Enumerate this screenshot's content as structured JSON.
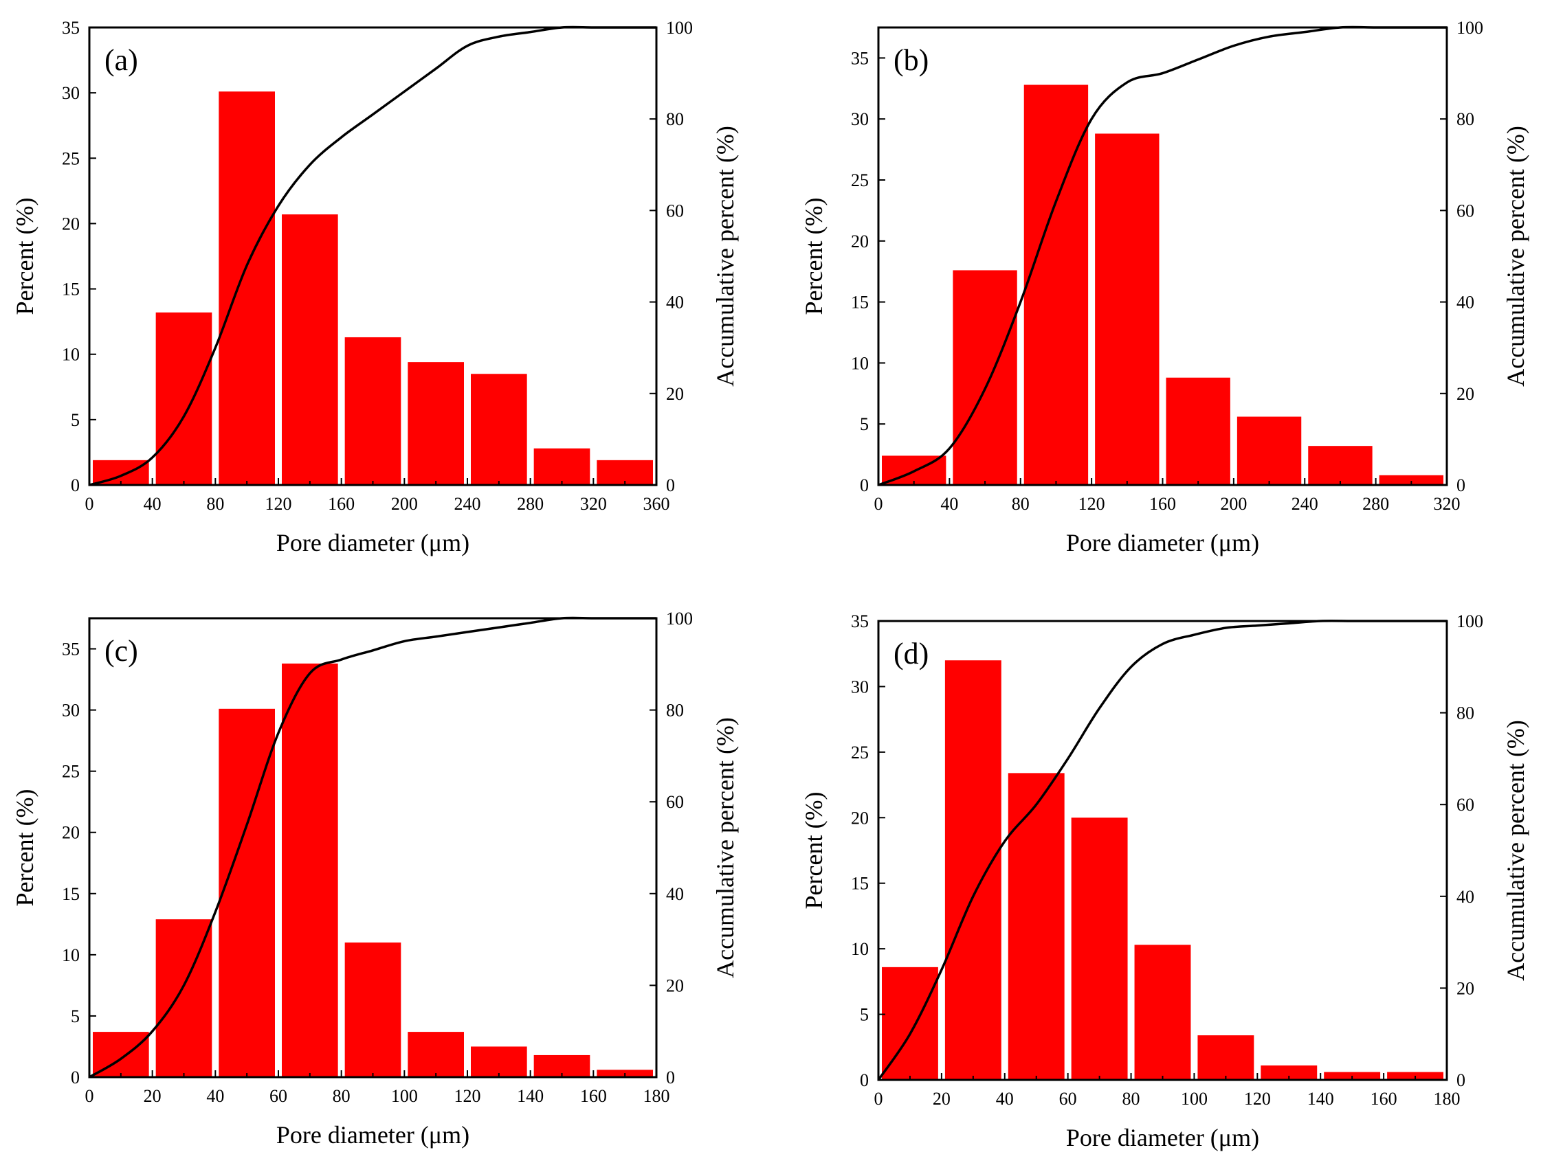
{
  "colors": {
    "bar": "#ff0000",
    "curve": "#000000",
    "axis": "#000000"
  },
  "chart_data": [
    {
      "type": "bar",
      "label": "(a)",
      "xlabel": "Pore diameter (μm)",
      "ylabel": "Percent (%)",
      "y2label": "Accumulative percent (%)",
      "xlim": [
        0,
        360
      ],
      "ylim": [
        0,
        35
      ],
      "y2lim": [
        0,
        100
      ],
      "xticks": [
        0,
        40,
        80,
        120,
        160,
        200,
        240,
        280,
        320,
        360
      ],
      "yticks": [
        0,
        5,
        10,
        15,
        20,
        25,
        30,
        35
      ],
      "y2ticks": [
        0,
        20,
        40,
        60,
        80,
        100
      ],
      "bin_width": 40,
      "bins": [
        0,
        40,
        80,
        120,
        160,
        200,
        240,
        280,
        320
      ],
      "values": [
        1.9,
        13.2,
        30.1,
        20.7,
        11.3,
        9.4,
        8.5,
        2.8,
        1.9
      ],
      "cumulative": {
        "x": [
          0,
          20,
          40,
          60,
          80,
          100,
          120,
          140,
          160,
          180,
          200,
          220,
          240,
          260,
          280,
          300,
          320,
          340,
          360
        ],
        "y": [
          0,
          2,
          6,
          15,
          30,
          48,
          61,
          70,
          76,
          81,
          86,
          91,
          96,
          98,
          99,
          100,
          100,
          100,
          100
        ]
      }
    },
    {
      "type": "bar",
      "label": "(b)",
      "xlabel": "Pore diameter (μm)",
      "ylabel": "Percent (%)",
      "y2label": "Accumulative percent (%)",
      "xlim": [
        0,
        320
      ],
      "ylim": [
        0,
        37.5
      ],
      "y2lim": [
        0,
        100
      ],
      "xticks": [
        0,
        40,
        80,
        120,
        160,
        200,
        240,
        280,
        320
      ],
      "yticks": [
        0,
        5,
        10,
        15,
        20,
        25,
        30,
        35
      ],
      "y2ticks": [
        0,
        20,
        40,
        60,
        80,
        100
      ],
      "bin_width": 40,
      "bins": [
        0,
        40,
        80,
        120,
        160,
        200,
        240,
        280
      ],
      "values": [
        2.4,
        17.6,
        32.8,
        28.8,
        8.8,
        5.6,
        3.2,
        0.8
      ],
      "cumulative": {
        "x": [
          0,
          20,
          40,
          60,
          80,
          100,
          120,
          140,
          160,
          180,
          200,
          220,
          240,
          260,
          280,
          300,
          320
        ],
        "y": [
          0,
          3,
          8,
          21,
          40,
          62,
          80,
          88,
          90,
          93,
          96,
          98,
          99,
          100,
          100,
          100,
          100
        ]
      }
    },
    {
      "type": "bar",
      "label": "(c)",
      "xlabel": "Pore diameter (μm)",
      "ylabel": "Percent (%)",
      "y2label": "Accumulative percent (%)",
      "xlim": [
        0,
        180
      ],
      "ylim": [
        0,
        37.5
      ],
      "y2lim": [
        0,
        100
      ],
      "xticks": [
        0,
        20,
        40,
        60,
        80,
        100,
        120,
        140,
        160,
        180
      ],
      "yticks": [
        0,
        5,
        10,
        15,
        20,
        25,
        30,
        35
      ],
      "y2ticks": [
        0,
        20,
        40,
        60,
        80,
        100
      ],
      "bin_width": 20,
      "bins": [
        0,
        20,
        40,
        60,
        80,
        100,
        120,
        140,
        160
      ],
      "values": [
        3.7,
        12.9,
        30.1,
        33.8,
        11.0,
        3.7,
        2.5,
        1.8,
        0.6
      ],
      "cumulative": {
        "x": [
          0,
          10,
          20,
          30,
          40,
          50,
          60,
          70,
          80,
          90,
          100,
          110,
          120,
          130,
          140,
          150,
          160,
          170,
          180
        ],
        "y": [
          0,
          4,
          10,
          20,
          36,
          55,
          75,
          88,
          91,
          93,
          95,
          96,
          97,
          98,
          99,
          100,
          100,
          100,
          100
        ]
      }
    },
    {
      "type": "bar",
      "label": "(d)",
      "xlabel": "Pore diameter (μm)",
      "ylabel": "Percent (%)",
      "y2label": "Accumulative percent (%)",
      "xlim": [
        0,
        180
      ],
      "ylim": [
        0,
        35
      ],
      "y2lim": [
        0,
        100
      ],
      "xticks": [
        0,
        20,
        40,
        60,
        80,
        100,
        120,
        140,
        160,
        180
      ],
      "yticks": [
        0,
        5,
        10,
        15,
        20,
        25,
        30,
        35
      ],
      "y2ticks": [
        0,
        20,
        40,
        60,
        80,
        100
      ],
      "bin_width": 20,
      "bins": [
        0,
        20,
        40,
        60,
        80,
        100,
        120,
        140,
        160
      ],
      "values": [
        8.6,
        32.0,
        23.4,
        20.0,
        10.3,
        3.4,
        1.1,
        0.6,
        0.6
      ],
      "cumulative": {
        "x": [
          0,
          10,
          20,
          30,
          40,
          50,
          60,
          70,
          80,
          90,
          100,
          110,
          120,
          130,
          140,
          150,
          160,
          170,
          180
        ],
        "y": [
          0,
          10,
          24,
          40,
          52,
          60,
          70,
          81,
          90,
          95,
          97,
          98.5,
          99,
          99.5,
          100,
          100,
          100,
          100,
          100
        ]
      }
    }
  ]
}
